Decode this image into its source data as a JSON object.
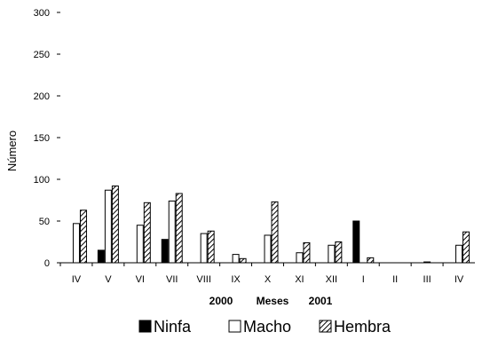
{
  "chart_data": {
    "type": "bar",
    "ylabel": "Número",
    "xlabel": {
      "year_left": "2000",
      "label": "Meses",
      "year_right": "2001"
    },
    "ylim": [
      0,
      300
    ],
    "yticks": [
      0,
      50,
      100,
      150,
      200,
      250,
      300
    ],
    "ytick_labels": [
      "0",
      "50",
      "100",
      "150",
      "200",
      "250",
      "300"
    ],
    "categories": [
      "IV",
      "V",
      "VI",
      "VII",
      "VIII",
      "IX",
      "X",
      "XI",
      "XII",
      "I",
      "II",
      "III",
      "IV"
    ],
    "grid": false,
    "legend_position": "bottom",
    "series": [
      {
        "name": "Ninfa",
        "fill": "#000000",
        "pattern": "solid",
        "values": [
          0,
          15,
          0,
          28,
          0,
          0,
          0,
          0,
          0,
          50,
          0,
          0,
          0
        ]
      },
      {
        "name": "Macho",
        "fill": "#ffffff",
        "pattern": "outline",
        "values": [
          47,
          87,
          45,
          74,
          35,
          10,
          33,
          12,
          21,
          0,
          0,
          1,
          21
        ]
      },
      {
        "name": "Hembra",
        "fill": "#ffffff",
        "pattern": "diagonal-hatch",
        "values": [
          63,
          92,
          72,
          83,
          38,
          5,
          73,
          24,
          25,
          6,
          0,
          0,
          37
        ]
      }
    ]
  }
}
